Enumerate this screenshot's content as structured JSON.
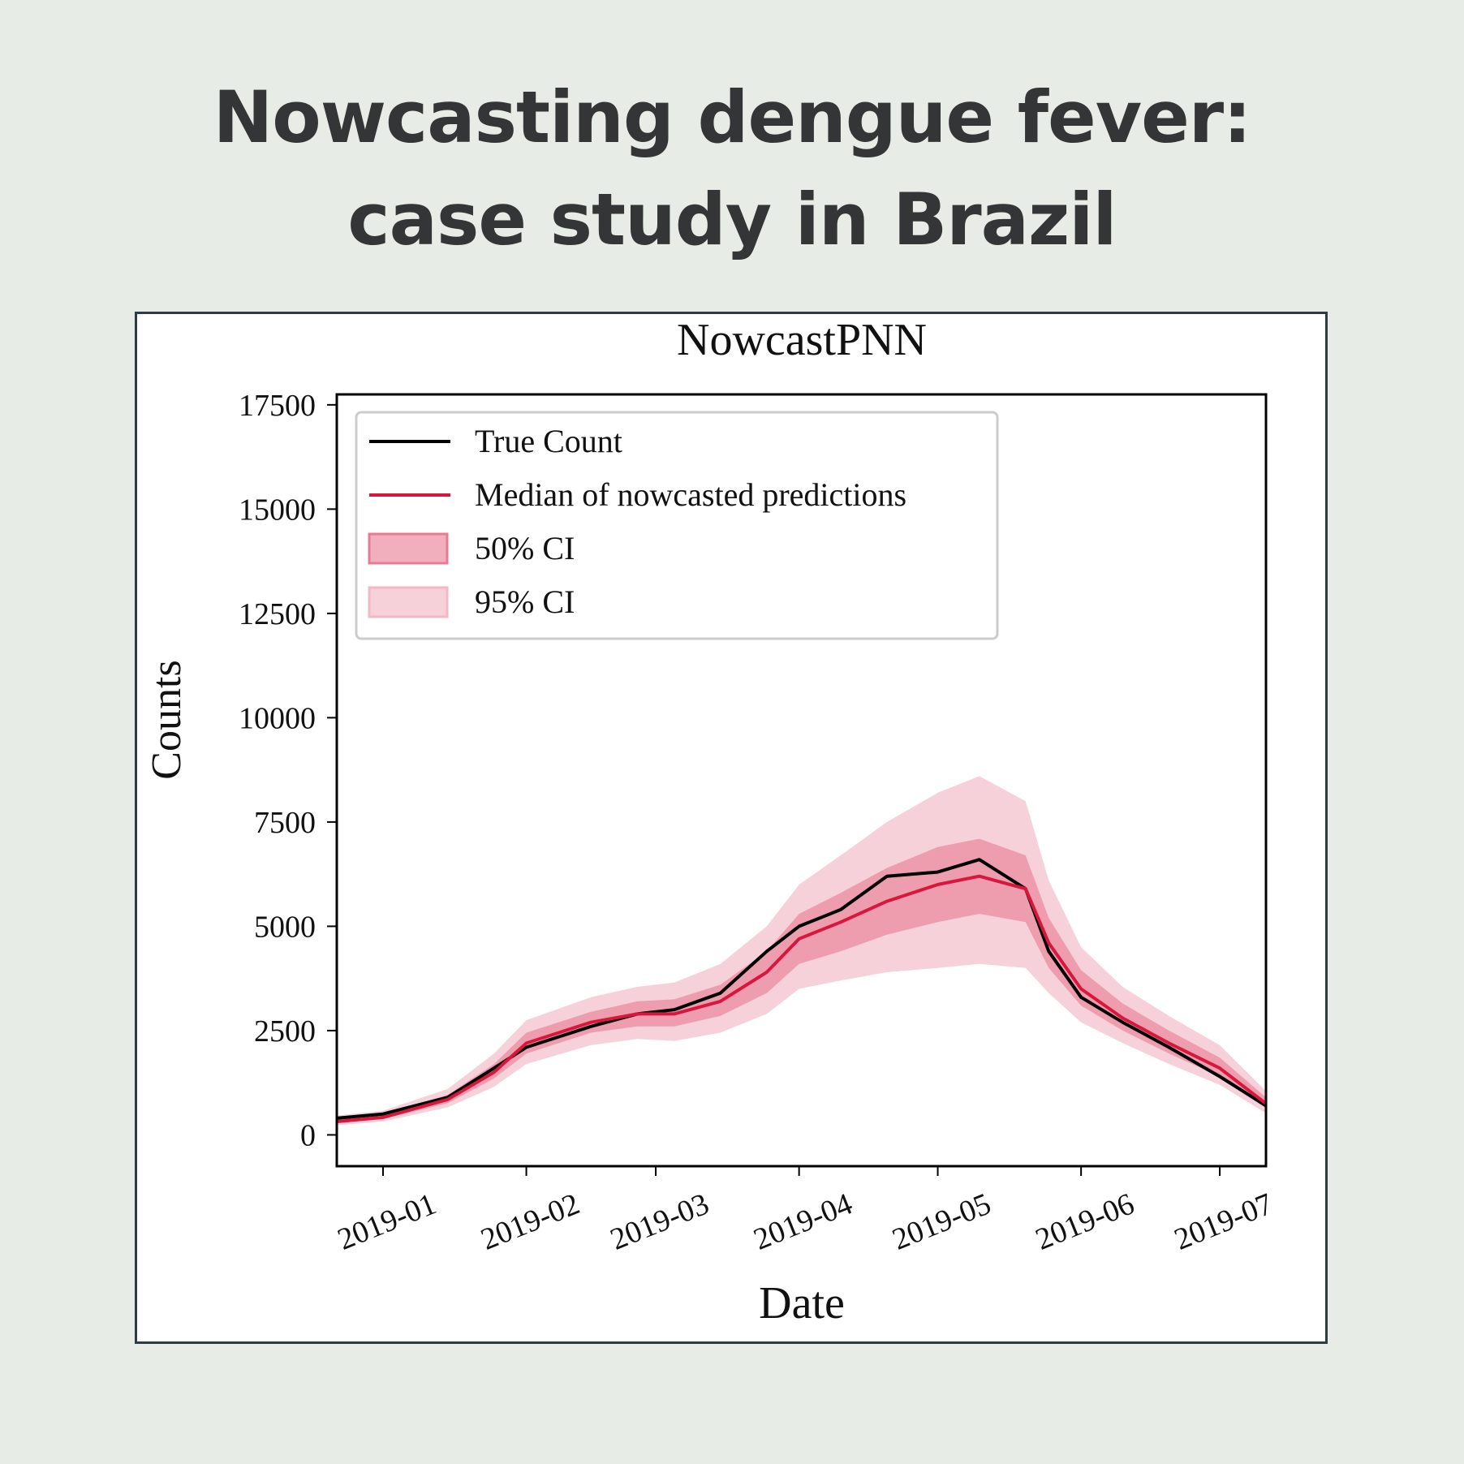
{
  "headline": {
    "line1": "Nowcasting dengue fever:",
    "line2": "case study in Brazil"
  },
  "colors": {
    "background": "#e8ece6",
    "true_count": "#000000",
    "median": "#d9173c",
    "ci50": "#e87a92",
    "ci95": "#f3b8c6"
  },
  "chart_data": {
    "type": "line",
    "title": "NowcastPNN",
    "xlabel": "Date",
    "ylabel": "Counts",
    "ylim": [
      -750,
      17750
    ],
    "xlim": [
      "2018-12-22",
      "2019-07-11"
    ],
    "yticks": [
      0,
      2500,
      5000,
      7500,
      10000,
      12500,
      15000,
      17500
    ],
    "xticks": [
      "2019-01",
      "2019-02",
      "2019-03",
      "2019-04",
      "2019-05",
      "2019-06",
      "2019-07"
    ],
    "grid": false,
    "legend_position": "upper-left",
    "legend": [
      "True Count",
      "Median of nowcasted predictions",
      "50% CI",
      "95% CI"
    ],
    "x": [
      "2018-12-22",
      "2019-01-01",
      "2019-01-15",
      "2019-01-25",
      "2019-02-01",
      "2019-02-15",
      "2019-02-25",
      "2019-03-05",
      "2019-03-15",
      "2019-03-25",
      "2019-04-01",
      "2019-04-10",
      "2019-04-20",
      "2019-05-01",
      "2019-05-10",
      "2019-05-20",
      "2019-05-25",
      "2019-06-01",
      "2019-06-10",
      "2019-06-20",
      "2019-07-01",
      "2019-07-11"
    ],
    "series": [
      {
        "name": "True Count",
        "values": [
          400,
          500,
          900,
          1600,
          2100,
          2600,
          2900,
          3000,
          3400,
          4400,
          5000,
          5400,
          6200,
          6300,
          6600,
          5900,
          4400,
          3300,
          2700,
          2100,
          1400,
          700
        ]
      },
      {
        "name": "Median of nowcasted predictions",
        "values": [
          320,
          420,
          850,
          1500,
          2200,
          2700,
          2900,
          2900,
          3200,
          3900,
          4700,
          5100,
          5600,
          6000,
          6200,
          5900,
          4600,
          3500,
          2800,
          2200,
          1600,
          750
        ]
      },
      {
        "name": "50% CI",
        "lower": [
          280,
          380,
          760,
          1350,
          1950,
          2450,
          2600,
          2600,
          2850,
          3400,
          4100,
          4400,
          4800,
          5100,
          5300,
          5100,
          4000,
          3100,
          2500,
          1950,
          1400,
          640
        ],
        "upper": [
          380,
          480,
          960,
          1700,
          2450,
          2950,
          3200,
          3250,
          3600,
          4400,
          5300,
          5800,
          6400,
          6900,
          7100,
          6700,
          5200,
          3950,
          3150,
          2500,
          1850,
          900
        ]
      },
      {
        "name": "95% CI",
        "lower": [
          230,
          320,
          660,
          1150,
          1700,
          2150,
          2300,
          2250,
          2450,
          2900,
          3500,
          3700,
          3900,
          4000,
          4100,
          4000,
          3400,
          2700,
          2200,
          1700,
          1200,
          520
        ],
        "upper": [
          460,
          580,
          1100,
          1950,
          2750,
          3300,
          3550,
          3650,
          4100,
          5000,
          6000,
          6700,
          7500,
          8200,
          8600,
          8000,
          6100,
          4500,
          3550,
          2850,
          2150,
          1050
        ]
      }
    ]
  }
}
